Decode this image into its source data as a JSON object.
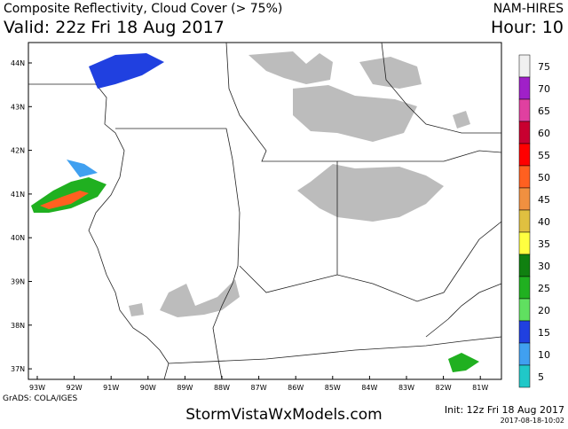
{
  "header": {
    "title": "Composite Reflectivity, Cloud Cover (> 75%)",
    "model": "NAM-HIRES",
    "valid": "Valid: 22z Fri 18 Aug 2017",
    "hour": "Hour: 10"
  },
  "map": {
    "lat_labels": [
      "44N",
      "43N",
      "42N",
      "41N",
      "40N",
      "39N",
      "38N",
      "37N"
    ],
    "lon_labels": [
      "93W",
      "92W",
      "91W",
      "90W",
      "89W",
      "88W",
      "87W",
      "86W",
      "85W",
      "84W",
      "83W",
      "82W",
      "81W"
    ]
  },
  "colorbar": {
    "labels": [
      "75",
      "70",
      "65",
      "60",
      "55",
      "50",
      "45",
      "40",
      "35",
      "30",
      "25",
      "20",
      "15",
      "10",
      "5"
    ],
    "colors": [
      "#f0f0f0",
      "#a020c8",
      "#e040a0",
      "#c80030",
      "#ff0000",
      "#ff6020",
      "#f09040",
      "#e0c040",
      "#ffff40",
      "#108010",
      "#20b020",
      "#60e060",
      "#2040e0",
      "#40a0f0",
      "#20c8c8"
    ]
  },
  "footer": {
    "grads": "GrADS: COLA/IGES",
    "site": "StormVistaWxModels.com",
    "init": "Init: 12z Fri 18 Aug 2017",
    "stamp": "2017-08-18-10:02"
  }
}
